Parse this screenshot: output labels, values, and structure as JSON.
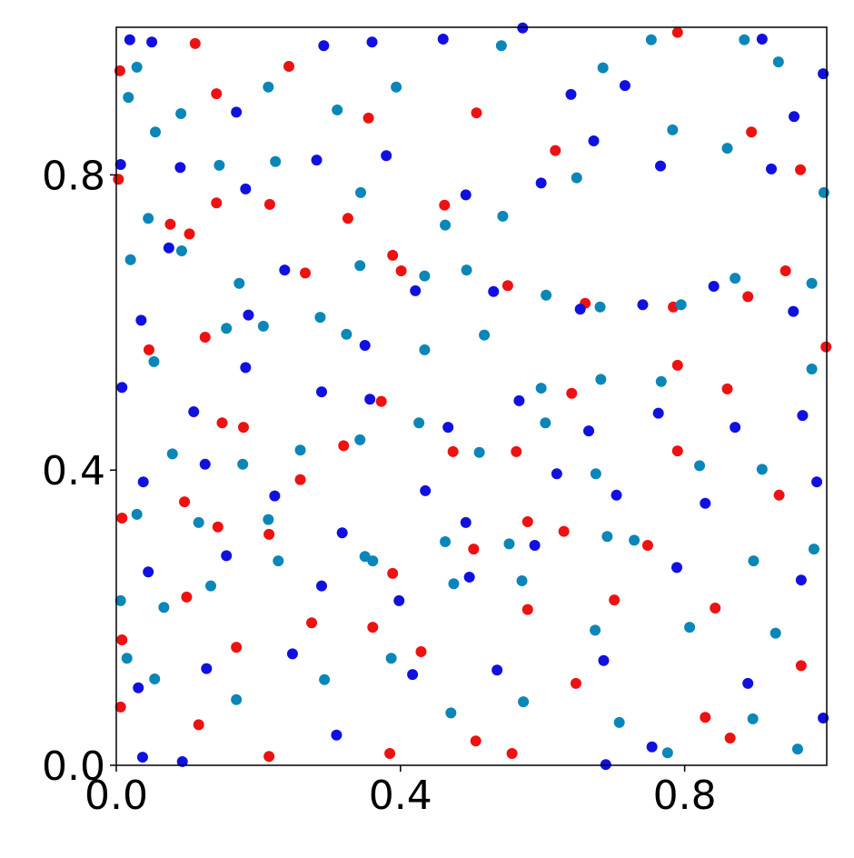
{
  "chart_data": {
    "type": "scatter",
    "xlim": [
      0,
      1
    ],
    "ylim": [
      0,
      1
    ],
    "xticks": [
      {
        "value": 0,
        "label": "0.0"
      },
      {
        "value": 0.4,
        "label": "0.4"
      },
      {
        "value": 0.8,
        "label": "0.8"
      }
    ],
    "yticks": [
      {
        "value": 0,
        "label": "0.0"
      },
      {
        "value": 0.4,
        "label": "0.4"
      },
      {
        "value": 0.8,
        "label": "0.8"
      }
    ],
    "grid": false,
    "series": [
      {
        "color": "#ee1111",
        "x": [
          0.005,
          0.111,
          0.141,
          0.243,
          0.355,
          0.401,
          0.507,
          0.618,
          0.79,
          0.894,
          0.963,
          0.003,
          0.076,
          0.103,
          0.141,
          0.216,
          0.266,
          0.326,
          0.389,
          0.462,
          0.551,
          0.66,
          0.784,
          0.889,
          0.942,
          0.999,
          0.046,
          0.125,
          0.149,
          0.179,
          0.259,
          0.32,
          0.373,
          0.474,
          0.563,
          0.641,
          0.79,
          0.86,
          0.933,
          0.79,
          0.008,
          0.096,
          0.143,
          0.215,
          0.389,
          0.503,
          0.579,
          0.63,
          0.748,
          0.843,
          0.008,
          0.099,
          0.169,
          0.275,
          0.361,
          0.429,
          0.579,
          0.701,
          0.829,
          0.964,
          0.215,
          0.385,
          0.557,
          0.864,
          0.006,
          0.116,
          0.506,
          0.647
        ],
        "values": [
          0.941,
          0.978,
          0.91,
          0.947,
          0.877,
          0.67,
          0.884,
          0.833,
          0.993,
          0.858,
          0.807,
          0.794,
          0.733,
          0.72,
          0.762,
          0.76,
          0.667,
          0.741,
          0.691,
          0.759,
          0.65,
          0.626,
          0.621,
          0.635,
          0.67,
          0.567,
          0.563,
          0.58,
          0.464,
          0.458,
          0.387,
          0.433,
          0.493,
          0.425,
          0.425,
          0.504,
          0.542,
          0.51,
          0.366,
          0.426,
          0.335,
          0.357,
          0.323,
          0.313,
          0.26,
          0.293,
          0.33,
          0.317,
          0.298,
          0.213,
          0.17,
          0.228,
          0.16,
          0.193,
          0.187,
          0.154,
          0.211,
          0.224,
          0.065,
          0.135,
          0.012,
          0.016,
          0.016,
          0.037,
          0.079,
          0.055,
          0.033,
          0.111
        ]
      },
      {
        "color": "#1010e0",
        "x": [
          0.019,
          0.05,
          0.169,
          0.292,
          0.36,
          0.46,
          0.572,
          0.64,
          0.716,
          0.909,
          0.995,
          0.006,
          0.09,
          0.182,
          0.282,
          0.38,
          0.492,
          0.598,
          0.672,
          0.766,
          0.922,
          0.954,
          0.035,
          0.074,
          0.186,
          0.237,
          0.35,
          0.421,
          0.531,
          0.653,
          0.741,
          0.841,
          0.953,
          0.008,
          0.109,
          0.182,
          0.289,
          0.357,
          0.467,
          0.567,
          0.665,
          0.763,
          0.871,
          0.966,
          0.038,
          0.125,
          0.223,
          0.318,
          0.435,
          0.492,
          0.62,
          0.704,
          0.829,
          0.986,
          0.045,
          0.155,
          0.289,
          0.398,
          0.497,
          0.589,
          0.789,
          0.964,
          0.031,
          0.127,
          0.248,
          0.31,
          0.417,
          0.536,
          0.686,
          0.754,
          0.889,
          0.995,
          0.037,
          0.093,
          0.689
        ],
        "values": [
          0.983,
          0.98,
          0.885,
          0.975,
          0.98,
          0.984,
          0.999,
          0.909,
          0.921,
          0.984,
          0.937,
          0.814,
          0.81,
          0.781,
          0.82,
          0.826,
          0.773,
          0.789,
          0.846,
          0.812,
          0.808,
          0.879,
          0.603,
          0.701,
          0.61,
          0.671,
          0.569,
          0.643,
          0.642,
          0.618,
          0.624,
          0.649,
          0.615,
          0.512,
          0.479,
          0.539,
          0.506,
          0.496,
          0.458,
          0.494,
          0.453,
          0.477,
          0.458,
          0.474,
          0.384,
          0.408,
          0.365,
          0.315,
          0.372,
          0.329,
          0.395,
          0.366,
          0.355,
          0.384,
          0.262,
          0.284,
          0.243,
          0.223,
          0.255,
          0.298,
          0.268,
          0.251,
          0.105,
          0.131,
          0.151,
          0.041,
          0.123,
          0.129,
          0.142,
          0.025,
          0.111,
          0.064,
          0.011,
          0.005,
          0.001
        ]
      },
      {
        "color": "#0a86b8",
        "x": [
          0.029,
          0.017,
          0.091,
          0.214,
          0.311,
          0.394,
          0.542,
          0.685,
          0.753,
          0.884,
          0.932,
          0.055,
          0.045,
          0.145,
          0.224,
          0.344,
          0.463,
          0.544,
          0.648,
          0.783,
          0.86,
          0.996,
          0.02,
          0.092,
          0.173,
          0.287,
          0.343,
          0.434,
          0.493,
          0.605,
          0.681,
          0.795,
          0.871,
          0.979,
          0.053,
          0.155,
          0.207,
          0.324,
          0.434,
          0.518,
          0.598,
          0.682,
          0.767,
          0.979,
          0.079,
          0.178,
          0.259,
          0.343,
          0.426,
          0.511,
          0.604,
          0.675,
          0.821,
          0.909,
          0.029,
          0.116,
          0.214,
          0.361,
          0.463,
          0.553,
          0.691,
          0.729,
          0.897,
          0.982,
          0.006,
          0.067,
          0.133,
          0.228,
          0.35,
          0.475,
          0.571,
          0.674,
          0.807,
          0.928,
          0.015,
          0.054,
          0.169,
          0.293,
          0.387,
          0.471,
          0.573,
          0.708,
          0.776,
          0.896,
          0.959
        ],
        "values": [
          0.946,
          0.905,
          0.883,
          0.919,
          0.888,
          0.919,
          0.975,
          0.945,
          0.983,
          0.983,
          0.953,
          0.858,
          0.741,
          0.813,
          0.818,
          0.776,
          0.732,
          0.744,
          0.796,
          0.861,
          0.836,
          0.776,
          0.685,
          0.697,
          0.653,
          0.607,
          0.677,
          0.663,
          0.671,
          0.637,
          0.621,
          0.624,
          0.66,
          0.653,
          0.547,
          0.592,
          0.595,
          0.584,
          0.563,
          0.583,
          0.511,
          0.523,
          0.52,
          0.537,
          0.422,
          0.408,
          0.427,
          0.441,
          0.464,
          0.424,
          0.464,
          0.395,
          0.406,
          0.401,
          0.34,
          0.329,
          0.333,
          0.277,
          0.303,
          0.3,
          0.31,
          0.305,
          0.277,
          0.293,
          0.223,
          0.214,
          0.243,
          0.277,
          0.283,
          0.246,
          0.25,
          0.183,
          0.187,
          0.179,
          0.145,
          0.117,
          0.089,
          0.116,
          0.145,
          0.071,
          0.086,
          0.058,
          0.017,
          0.063,
          0.022
        ]
      }
    ]
  }
}
